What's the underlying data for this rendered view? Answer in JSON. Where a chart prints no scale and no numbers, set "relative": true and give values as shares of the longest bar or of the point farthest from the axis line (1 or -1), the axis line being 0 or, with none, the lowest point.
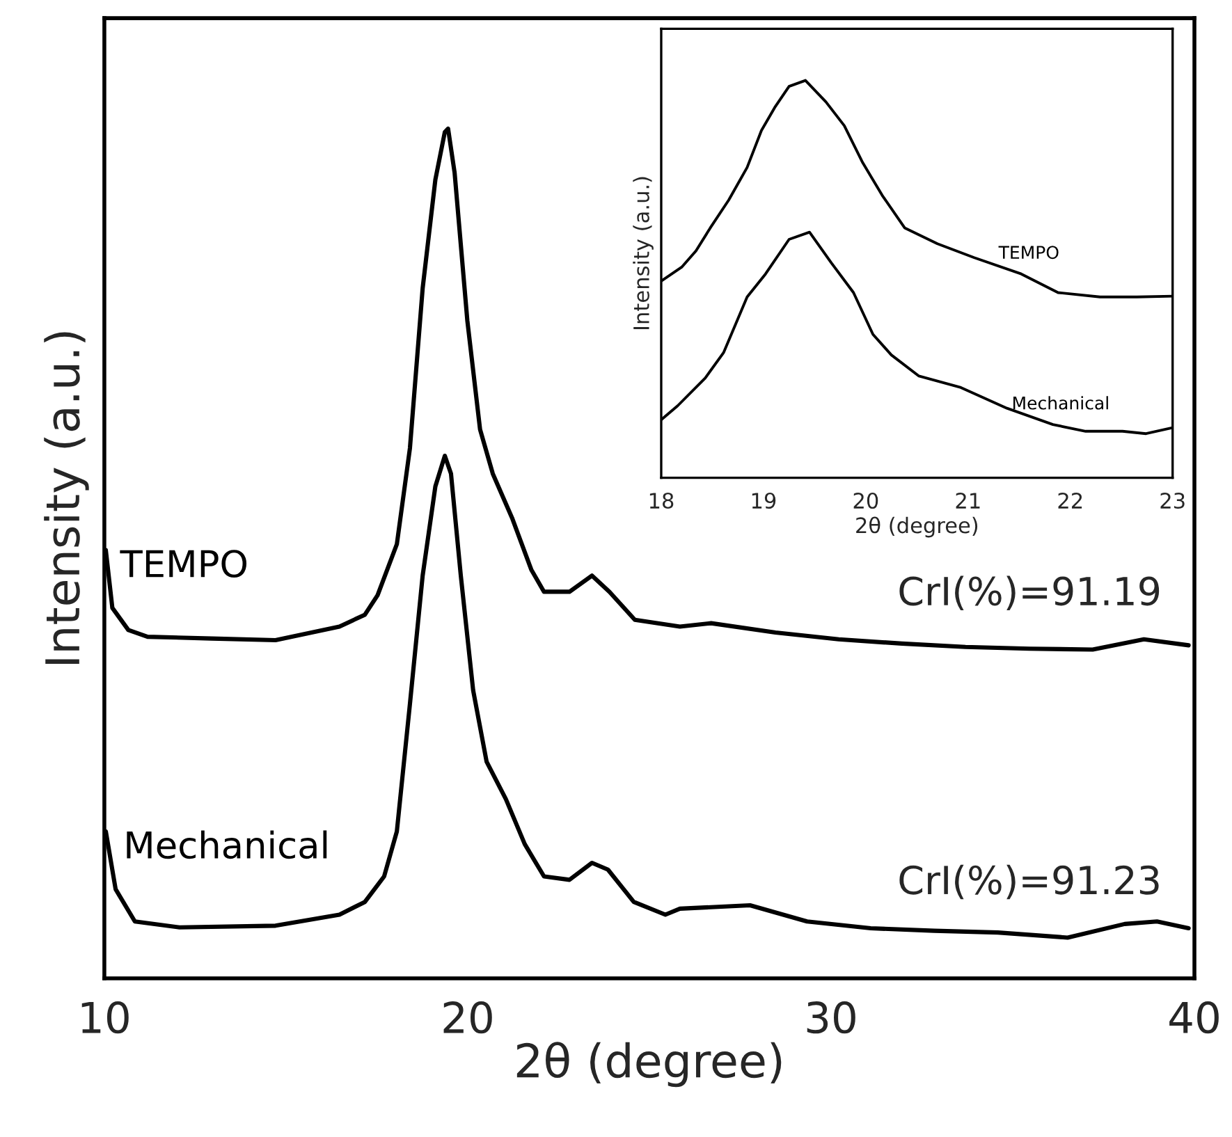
{
  "chart_data": [
    {
      "type": "line",
      "xlabel": "2θ (degree)",
      "ylabel": "Intensity (a.u.)",
      "relative": true,
      "tick_labels": "x",
      "xlim": [
        10,
        40
      ],
      "xticks": [
        10,
        20,
        30,
        40
      ],
      "annotations": [
        "CrI(%)=91.19",
        "CrI(%)=91.23"
      ],
      "series": [
        {
          "name": "TEMPO",
          "color": "#000000",
          "x": [
            10.04,
            10.22,
            10.66,
            11.19,
            12.95,
            14.71,
            16.47,
            17.17,
            17.52,
            18.05,
            18.41,
            18.76,
            19.11,
            19.37,
            19.46,
            19.64,
            19.99,
            20.34,
            20.69,
            21.22,
            21.75,
            22.1,
            22.8,
            23.42,
            23.9,
            24.6,
            25.84,
            26.7,
            28.47,
            30.21,
            31.95,
            33.7,
            35.46,
            37.2,
            38.61,
            39.84
          ],
          "values": [
            0.504,
            0.436,
            0.41,
            0.402,
            0.4,
            0.398,
            0.414,
            0.428,
            0.451,
            0.511,
            0.624,
            0.812,
            0.94,
            0.996,
            1.0,
            0.948,
            0.774,
            0.646,
            0.594,
            0.542,
            0.481,
            0.455,
            0.455,
            0.474,
            0.455,
            0.422,
            0.414,
            0.418,
            0.407,
            0.399,
            0.394,
            0.39,
            0.388,
            0.387,
            0.399,
            0.392
          ]
        },
        {
          "name": "Mechanical",
          "color": "#000000",
          "x": [
            10.04,
            10.31,
            10.84,
            12.07,
            14.71,
            16.47,
            17.17,
            17.7,
            18.05,
            18.41,
            18.76,
            19.11,
            19.37,
            19.54,
            19.81,
            20.15,
            20.52,
            21.05,
            21.57,
            22.1,
            22.8,
            23.42,
            23.86,
            24.57,
            25.44,
            25.84,
            27.77,
            29.34,
            31.09,
            32.84,
            34.59,
            36.51,
            38.08,
            38.97,
            39.84
          ],
          "values": [
            0.173,
            0.105,
            0.067,
            0.06,
            0.062,
            0.075,
            0.09,
            0.12,
            0.173,
            0.323,
            0.474,
            0.579,
            0.615,
            0.594,
            0.474,
            0.339,
            0.255,
            0.211,
            0.158,
            0.12,
            0.116,
            0.136,
            0.128,
            0.09,
            0.075,
            0.082,
            0.086,
            0.067,
            0.059,
            0.056,
            0.054,
            0.048,
            0.064,
            0.067,
            0.059
          ]
        }
      ]
    },
    {
      "type": "line",
      "xlabel": "2θ (degree)",
      "ylabel": "Intensity (a.u.)",
      "relative": true,
      "tick_labels": "x",
      "xlim": [
        18,
        23
      ],
      "xticks": [
        18,
        19,
        20,
        21,
        22,
        23
      ],
      "series": [
        {
          "name": "TEMPO",
          "color": "#000000",
          "x": [
            18.0,
            18.2,
            18.34,
            18.48,
            18.66,
            18.84,
            18.98,
            19.11,
            19.25,
            19.41,
            19.61,
            19.79,
            19.97,
            20.16,
            20.38,
            20.7,
            21.06,
            21.52,
            21.88,
            22.29,
            22.65,
            23.0
          ],
          "values": [
            0.495,
            0.53,
            0.571,
            0.629,
            0.699,
            0.781,
            0.874,
            0.932,
            0.985,
            1.0,
            0.946,
            0.886,
            0.793,
            0.711,
            0.629,
            0.589,
            0.554,
            0.513,
            0.466,
            0.455,
            0.455,
            0.457
          ]
        },
        {
          "name": "Mechanical",
          "color": "#000000",
          "x": [
            18.0,
            18.16,
            18.43,
            18.61,
            18.84,
            19.02,
            19.25,
            19.45,
            19.66,
            19.88,
            20.07,
            20.25,
            20.52,
            20.93,
            21.38,
            21.83,
            22.15,
            22.51,
            22.74,
            23.0
          ],
          "values": [
            0.146,
            0.181,
            0.251,
            0.315,
            0.455,
            0.513,
            0.6,
            0.618,
            0.542,
            0.466,
            0.361,
            0.309,
            0.256,
            0.227,
            0.175,
            0.134,
            0.117,
            0.117,
            0.111,
            0.126
          ]
        }
      ]
    }
  ]
}
